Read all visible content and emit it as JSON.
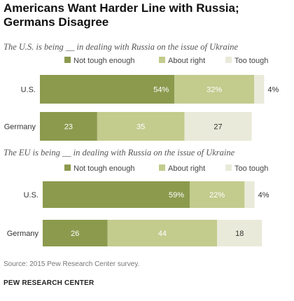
{
  "title": "Americans Want Harder Line with Russia; Germans Disagree",
  "source": "Source: 2015 Pew Research Center survey.",
  "organization": "PEW RESEARCH CENTER",
  "colors": {
    "not_tough_enough": "#8c9a4e",
    "about_right": "#c3cb8d",
    "too_tough": "#e9ead9"
  },
  "chart_data": [
    {
      "type": "bar",
      "orientation": "horizontal",
      "stacked": true,
      "title": "The U.S. is being __ in dealing with Russia on the issue of Ukraine",
      "categories": [
        "U.S.",
        "Germany"
      ],
      "series": [
        {
          "name": "Not tough enough",
          "values": [
            54,
            23
          ],
          "labels": [
            "54%",
            "23"
          ]
        },
        {
          "name": "About right",
          "values": [
            32,
            35
          ],
          "labels": [
            "32%",
            "35"
          ]
        },
        {
          "name": "Too tough",
          "values": [
            4,
            27
          ],
          "labels": [
            "4%",
            "27"
          ]
        }
      ],
      "legend": "top"
    },
    {
      "type": "bar",
      "orientation": "horizontal",
      "stacked": true,
      "title": "The EU is being __ in dealing with Russia on the issue of Ukraine",
      "categories": [
        "U.S.",
        "Germany"
      ],
      "series": [
        {
          "name": "Not tough enough",
          "values": [
            59,
            26
          ],
          "labels": [
            "59%",
            "26"
          ]
        },
        {
          "name": "About right",
          "values": [
            22,
            44
          ],
          "labels": [
            "22%",
            "44"
          ]
        },
        {
          "name": "Too tough",
          "values": [
            4,
            18
          ],
          "labels": [
            "4%",
            "18"
          ]
        }
      ],
      "legend": "top"
    }
  ]
}
